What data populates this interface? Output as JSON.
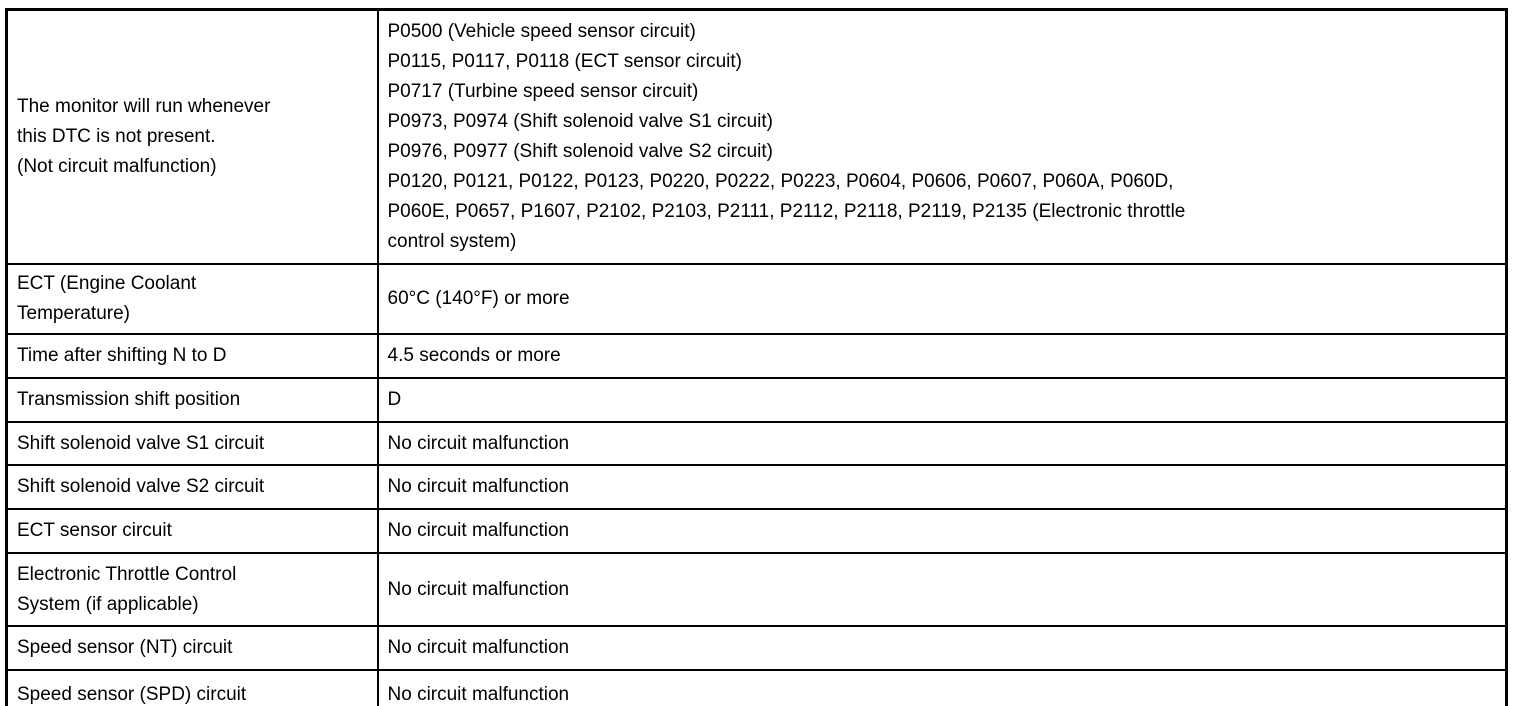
{
  "table": {
    "name": "dtc-monitor-run-conditions",
    "rows": [
      {
        "label_lines": [
          "The monitor will run whenever",
          "this DTC is not present.",
          "(Not circuit malfunction)"
        ],
        "value_lines": [
          "P0500 (Vehicle speed sensor circuit)",
          "P0115, P0117, P0118 (ECT sensor circuit)",
          "P0717 (Turbine speed sensor circuit)",
          "P0973, P0974 (Shift solenoid valve S1 circuit)",
          "P0976, P0977 (Shift solenoid valve S2 circuit)",
          "P0120, P0121, P0122, P0123, P0220, P0222, P0223, P0604, P0606, P0607, P060A, P060D,",
          "P060E, P0657, P1607, P2102, P2103, P2111, P2112, P2118, P2119, P2135 (Electronic throttle",
          "control system)"
        ]
      },
      {
        "label_lines": [
          "ECT (Engine Coolant",
          "Temperature)"
        ],
        "value_lines": [
          "60°C (140°F) or more"
        ]
      },
      {
        "label_lines": [
          "Time after shifting N to D"
        ],
        "value_lines": [
          "4.5 seconds or more"
        ]
      },
      {
        "label_lines": [
          "Transmission shift position"
        ],
        "value_lines": [
          "D"
        ]
      },
      {
        "label_lines": [
          "Shift solenoid valve S1 circuit"
        ],
        "value_lines": [
          "No circuit malfunction"
        ]
      },
      {
        "label_lines": [
          "Shift solenoid valve S2 circuit"
        ],
        "value_lines": [
          "No circuit malfunction"
        ]
      },
      {
        "label_lines": [
          "ECT sensor circuit"
        ],
        "value_lines": [
          "No circuit malfunction"
        ]
      },
      {
        "label_lines": [
          "Electronic Throttle Control",
          "System (if applicable)"
        ],
        "value_lines": [
          "No circuit malfunction"
        ]
      },
      {
        "label_lines": [
          "Speed sensor (NT) circuit"
        ],
        "value_lines": [
          "No circuit malfunction"
        ]
      },
      {
        "label_lines": [
          "Speed sensor (SPD) circuit"
        ],
        "value_lines": [
          "No circuit malfunction"
        ]
      }
    ]
  }
}
